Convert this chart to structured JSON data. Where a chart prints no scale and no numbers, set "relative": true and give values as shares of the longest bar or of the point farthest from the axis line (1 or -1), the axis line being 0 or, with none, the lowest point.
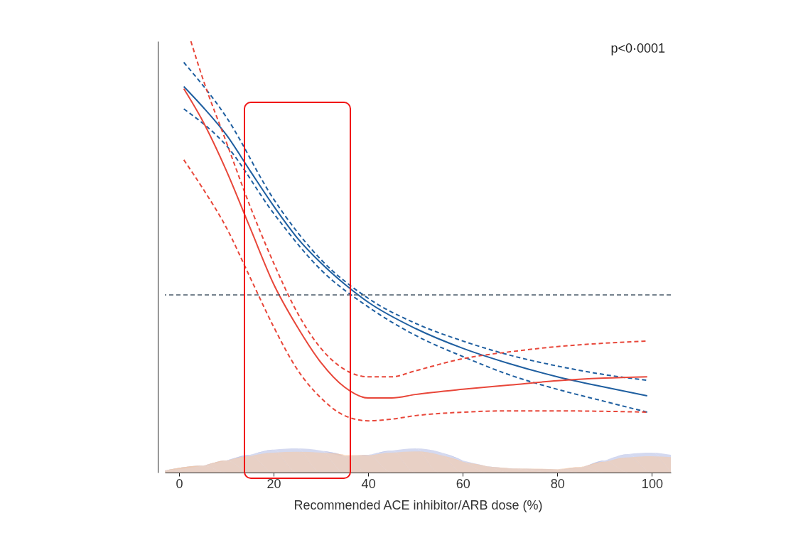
{
  "chart_data": {
    "type": "line",
    "relative": true,
    "xlabel": "Recommended ACE inhibitor/ARB dose (%)",
    "xlim": [
      -3,
      104
    ],
    "xticks": [
      0,
      20,
      40,
      60,
      80,
      100
    ],
    "grid": false,
    "annotations": [
      "p<0·0001"
    ],
    "ref_lines": [
      {
        "axis": "y",
        "value": 0.412,
        "color": "#4a5a6a",
        "line_style": "dashed"
      }
    ],
    "series": [
      {
        "type": "area",
        "color": "#b8bfe6",
        "x": [
          -3,
          5,
          10,
          15,
          20,
          25,
          30,
          35,
          40,
          45,
          50,
          55,
          60,
          65,
          70,
          80,
          85,
          90,
          95,
          100,
          104
        ],
        "values": [
          0.005,
          0.016,
          0.028,
          0.041,
          0.053,
          0.056,
          0.051,
          0.038,
          0.041,
          0.051,
          0.056,
          0.048,
          0.028,
          0.015,
          0.01,
          0.007,
          0.012,
          0.028,
          0.043,
          0.046,
          0.041
        ]
      },
      {
        "type": "area",
        "color": "#f5c9a8",
        "x": [
          -3,
          5,
          10,
          15,
          20,
          25,
          30,
          35,
          40,
          45,
          50,
          55,
          60,
          65,
          70,
          80,
          85,
          90,
          95,
          100,
          104
        ],
        "values": [
          0.005,
          0.016,
          0.028,
          0.038,
          0.046,
          0.048,
          0.046,
          0.041,
          0.04,
          0.046,
          0.049,
          0.041,
          0.025,
          0.015,
          0.01,
          0.008,
          0.013,
          0.025,
          0.035,
          0.038,
          0.036
        ]
      },
      {
        "color": "#1f5fa0",
        "line_style": "solid",
        "x": [
          1,
          5,
          10,
          15,
          20,
          25,
          30,
          35,
          40,
          50,
          60,
          70,
          80,
          90,
          99
        ],
        "values": [
          0.895,
          0.848,
          0.783,
          0.7,
          0.618,
          0.544,
          0.486,
          0.437,
          0.395,
          0.334,
          0.288,
          0.252,
          0.222,
          0.198,
          0.178
        ]
      },
      {
        "color": "#1f5fa0",
        "line_style": "dashed",
        "x": [
          1,
          10,
          20,
          30,
          40,
          50,
          60,
          70,
          80,
          90,
          99
        ],
        "values": [
          0.951,
          0.824,
          0.634,
          0.494,
          0.404,
          0.346,
          0.305,
          0.272,
          0.247,
          0.227,
          0.214
        ]
      },
      {
        "color": "#1f5fa0",
        "line_style": "dashed",
        "x": [
          1,
          10,
          20,
          30,
          40,
          50,
          60,
          70,
          80,
          90,
          99
        ],
        "values": [
          0.843,
          0.758,
          0.601,
          0.47,
          0.384,
          0.318,
          0.269,
          0.226,
          0.193,
          0.165,
          0.14
        ]
      },
      {
        "color": "#e8473a",
        "line_style": "solid",
        "x": [
          1,
          5,
          10,
          15,
          20,
          25,
          30,
          35,
          40,
          45,
          50,
          60,
          70,
          80,
          90,
          99
        ],
        "values": [
          0.89,
          0.815,
          0.7,
          0.568,
          0.437,
          0.338,
          0.255,
          0.198,
          0.173,
          0.173,
          0.181,
          0.193,
          0.203,
          0.213,
          0.219,
          0.222
        ]
      },
      {
        "color": "#e8473a",
        "line_style": "dashed",
        "x": [
          2.5,
          5,
          10,
          15,
          20,
          25,
          30,
          35,
          40,
          45,
          50,
          60,
          70,
          80,
          90,
          99
        ],
        "values": [
          1.0,
          0.914,
          0.766,
          0.618,
          0.486,
          0.371,
          0.288,
          0.239,
          0.222,
          0.222,
          0.236,
          0.264,
          0.28,
          0.292,
          0.3,
          0.305
        ]
      },
      {
        "color": "#e8473a",
        "line_style": "dashed",
        "x": [
          1,
          5,
          10,
          15,
          20,
          25,
          30,
          35,
          40,
          45,
          50,
          60,
          70,
          80,
          90,
          99
        ],
        "values": [
          0.725,
          0.659,
          0.568,
          0.453,
          0.338,
          0.239,
          0.173,
          0.132,
          0.12,
          0.124,
          0.132,
          0.14,
          0.143,
          0.143,
          0.142,
          0.14
        ]
      }
    ]
  }
}
